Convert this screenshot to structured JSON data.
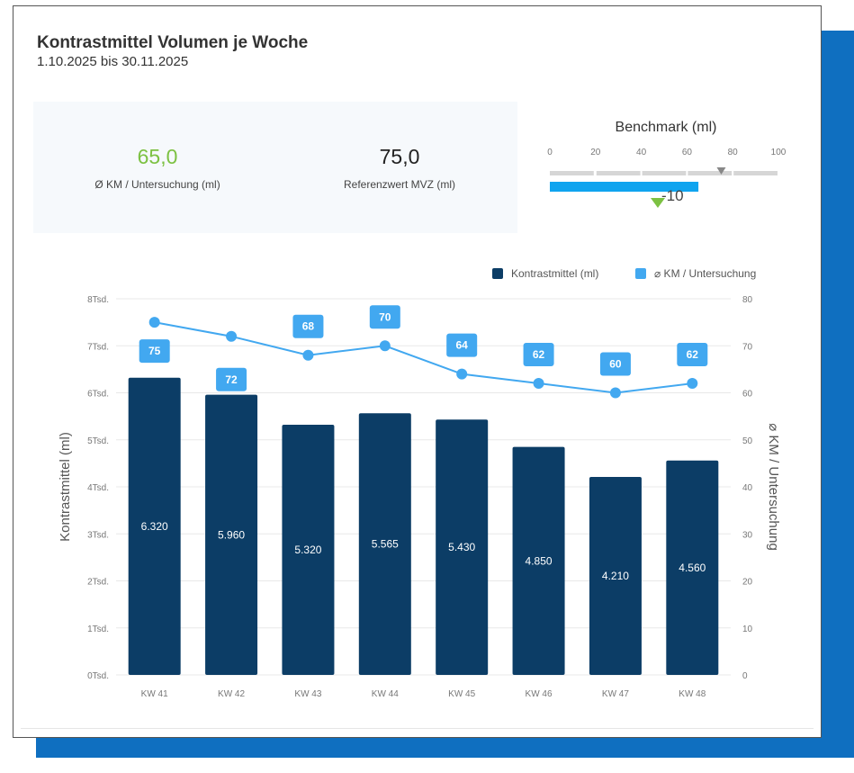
{
  "header": {
    "title": "Kontrastmittel Volumen je Woche",
    "date_range": "1.10.2025 bis 30.11.2025"
  },
  "kpis": [
    {
      "value": "65,0",
      "label": "Ø KM / Untersuchung (ml)",
      "color": "#7cc142"
    },
    {
      "value": "75,0",
      "label": "Referenzwert MVZ (ml)",
      "color": "#222222"
    }
  ],
  "benchmark": {
    "title": "Benchmark (ml)",
    "ticks": [
      "0",
      "20",
      "40",
      "60",
      "80",
      "100"
    ],
    "scale_max": 100,
    "actual_value": 65,
    "reference_value": 75,
    "delta_label": "-10",
    "bar_color": "#0fa4ef",
    "indicator_color": "#7cc142"
  },
  "chart_data": {
    "type": "bar",
    "categories": [
      "KW 41",
      "KW 42",
      "KW 43",
      "KW 44",
      "KW 45",
      "KW 46",
      "KW 47",
      "KW 48"
    ],
    "series": [
      {
        "name": "Kontrastmittel (ml)",
        "type": "bar",
        "axis": "left",
        "values": [
          6320,
          5960,
          5320,
          5565,
          5430,
          4850,
          4210,
          4560
        ],
        "labels": [
          "6.320",
          "5.960",
          "5.320",
          "5.565",
          "5.430",
          "4.850",
          "4.210",
          "4.560"
        ],
        "color": "#0c3d66"
      },
      {
        "name": "⌀ KM / Untersuchung",
        "type": "line",
        "axis": "right",
        "values": [
          75,
          72,
          68,
          70,
          64,
          62,
          60,
          62
        ],
        "color": "#42a8f0"
      }
    ],
    "y_left": {
      "label": "Kontrastmittel (ml)",
      "range": [
        0,
        8000
      ],
      "tick_labels": [
        "0Tsd.",
        "1Tsd.",
        "2Tsd.",
        "3Tsd.",
        "4Tsd.",
        "5Tsd.",
        "6Tsd.",
        "7Tsd.",
        "8Tsd."
      ]
    },
    "y_right": {
      "label": "⌀ KM / Untersuchung",
      "range": [
        0,
        80
      ],
      "tick_labels": [
        "0",
        "10",
        "20",
        "30",
        "40",
        "50",
        "60",
        "70",
        "80"
      ]
    },
    "grid": true,
    "legend_position": "top-right"
  }
}
